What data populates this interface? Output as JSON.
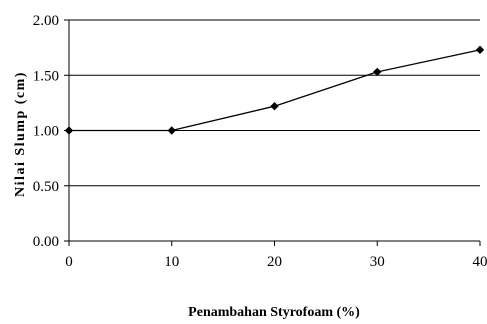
{
  "chart_data": {
    "type": "line",
    "title": "",
    "xlabel": "Penambahan Styrofoam (%)",
    "ylabel": "Nilai Slump (cm)",
    "x": [
      0,
      10,
      20,
      30,
      40
    ],
    "series": [
      {
        "values": [
          1.0,
          1.0,
          1.22,
          1.53,
          1.73
        ]
      }
    ],
    "xlim": [
      0,
      40
    ],
    "ylim": [
      0,
      2
    ],
    "xticks": [
      "0",
      "10",
      "20",
      "30",
      "40"
    ],
    "yticks": [
      "0.00",
      "0.50",
      "1.00",
      "1.50",
      "2.00"
    ],
    "grid": "horizontal",
    "legend": "none",
    "colors": {
      "line": "#000000",
      "marker": "#000000",
      "grid": "#000000"
    },
    "marker": "diamond-marker"
  }
}
